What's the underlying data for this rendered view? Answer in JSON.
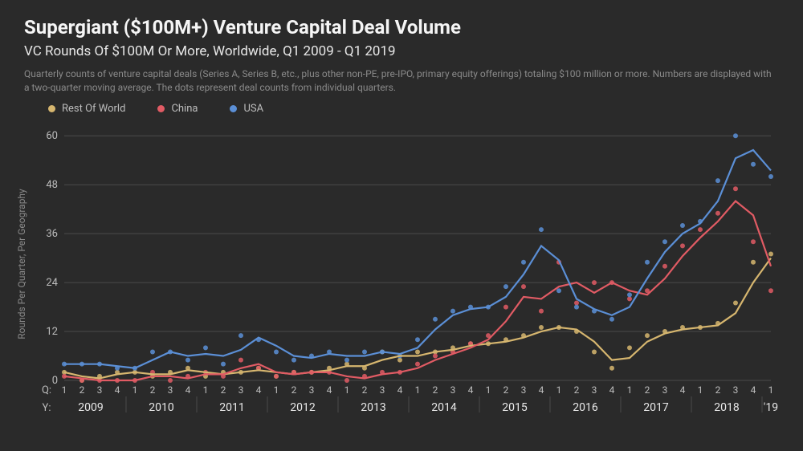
{
  "title": "Supergiant ($100M+) Venture Capital Deal Volume",
  "subtitle": "VC Rounds Of $100M Or More, Worldwide, Q1 2009 - Q1 2019",
  "description": "Quarterly counts of venture capital deals (Series A, Series B, etc., plus other non-PE, pre-IPO, primary equity offerings) totaling $100 million or more. Numbers are displayed with a two-quarter moving average. The dots represent deal counts from individual quarters.",
  "ylabel": "Rounds Per Quarter, Per Geography",
  "legend": [
    {
      "label": "Rest Of World",
      "color": "#d6b66f"
    },
    {
      "label": "China",
      "color": "#e15b64"
    },
    {
      "label": "USA",
      "color": "#5b8fd6"
    }
  ],
  "chart": {
    "type": "line+scatter",
    "background_color": "#2a2a2a",
    "grid_color": "#4a4a4a",
    "text_color": "#bdbdbd",
    "ylim": [
      0,
      63
    ],
    "yticks": [
      0,
      12,
      24,
      36,
      48,
      60
    ],
    "quarters": [
      "1",
      "2",
      "3",
      "4",
      "1",
      "2",
      "3",
      "4",
      "1",
      "2",
      "3",
      "4",
      "1",
      "2",
      "3",
      "4",
      "1",
      "2",
      "3",
      "4",
      "1",
      "2",
      "3",
      "4",
      "1",
      "2",
      "3",
      "4",
      "1",
      "2",
      "3",
      "4",
      "1",
      "2",
      "3",
      "4",
      "1",
      "2",
      "3",
      "4",
      "1"
    ],
    "years": [
      "2009",
      "2010",
      "2011",
      "2012",
      "2013",
      "2014",
      "2015",
      "2016",
      "2017",
      "2018",
      "'19"
    ],
    "year_spans": [
      4,
      4,
      4,
      4,
      4,
      4,
      4,
      4,
      4,
      4,
      1
    ],
    "q_row_label": "Q:",
    "y_row_label": "Y:",
    "series": [
      {
        "name": "usa",
        "color": "#5b8fd6",
        "points": [
          4,
          4,
          4,
          3,
          3,
          7,
          7,
          5,
          8,
          4,
          11,
          10,
          7,
          5,
          6,
          7,
          5,
          7,
          7,
          6,
          10,
          15,
          17,
          18,
          18,
          23,
          29,
          37,
          22,
          18,
          17,
          15,
          21,
          29,
          34,
          38,
          39,
          49,
          60,
          53,
          50
        ],
        "line": [
          4,
          4,
          4,
          3.5,
          3,
          5,
          7,
          6,
          6.5,
          6,
          7.5,
          10.5,
          8.5,
          6,
          5.5,
          6.5,
          6,
          6,
          7,
          6.5,
          8,
          12.5,
          16,
          17.5,
          18,
          20.5,
          26,
          33,
          29.5,
          20,
          17.5,
          16,
          18,
          25,
          31.5,
          36,
          38.5,
          44,
          54.5,
          56.5,
          51.5
        ]
      },
      {
        "name": "china",
        "color": "#e15b64",
        "points": [
          1,
          0,
          0,
          0,
          0,
          2,
          0,
          1,
          2,
          1,
          5,
          3,
          1,
          2,
          2,
          2,
          0,
          1,
          2,
          2,
          4,
          6,
          7,
          9,
          11,
          18,
          23,
          17,
          29,
          19,
          24,
          24,
          20,
          22,
          28,
          33,
          37,
          41,
          47,
          34,
          22
        ],
        "line": [
          1,
          0.5,
          0,
          0,
          0,
          1,
          1,
          0.5,
          1.5,
          1.5,
          3,
          4,
          2,
          1.5,
          2,
          2,
          1,
          0.5,
          1.5,
          2,
          3,
          5,
          6.5,
          8,
          10,
          14.5,
          20.5,
          20,
          23,
          24,
          21.5,
          24,
          22,
          21,
          25,
          30.5,
          35,
          39,
          44,
          40.5,
          28
        ]
      },
      {
        "name": "rest-of-world",
        "color": "#d6b66f",
        "points": [
          2,
          0,
          1,
          2,
          2,
          1,
          2,
          3,
          1,
          2,
          2,
          3,
          1,
          2,
          2,
          3,
          4,
          3,
          7,
          5,
          7,
          7,
          8,
          9,
          9,
          10,
          11,
          13,
          13,
          12,
          7,
          3,
          8,
          11,
          12,
          13,
          13,
          14,
          19,
          29,
          31
        ],
        "line": [
          2,
          1,
          0.5,
          1.5,
          2,
          1.5,
          1.5,
          2.5,
          2,
          1.5,
          2,
          2.5,
          2,
          1.5,
          2,
          2.5,
          3.5,
          3.5,
          5,
          6,
          6,
          7,
          7.5,
          8.5,
          9,
          9.5,
          10.5,
          12,
          13,
          12.5,
          9.5,
          5,
          5.5,
          9.5,
          11.5,
          12.5,
          13,
          13.5,
          16.5,
          24,
          30
        ]
      }
    ],
    "title_fontsize": 24,
    "subtitle_fontsize": 17,
    "label_fontsize": 12,
    "line_width": 2.2,
    "marker_radius": 3
  }
}
